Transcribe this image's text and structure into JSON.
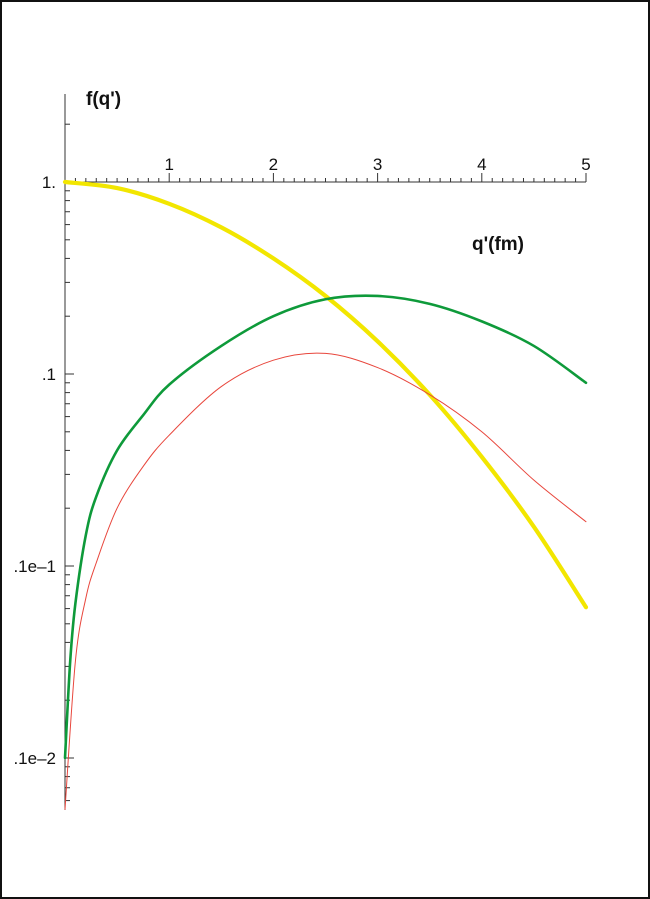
{
  "chart_data": {
    "type": "line",
    "ylabel": "f(q')",
    "xlabel": "q'(fm)",
    "xlim": [
      0,
      5
    ],
    "ylim": [
      0.0006,
      2.5
    ],
    "yscale": "log",
    "x_ticks": [
      {
        "value": 1,
        "label": "1"
      },
      {
        "value": 2,
        "label": "2"
      },
      {
        "value": 3,
        "label": "3"
      },
      {
        "value": 4,
        "label": "4"
      },
      {
        "value": 5,
        "label": "5"
      }
    ],
    "y_ticks": [
      {
        "value": 1,
        "label": "1."
      },
      {
        "value": 0.1,
        "label": ".1"
      },
      {
        "value": 0.01,
        "label": ".1e–1"
      },
      {
        "value": 0.001,
        "label": ".1e–2"
      }
    ],
    "grid": false,
    "series": [
      {
        "color": "#f2e600",
        "x": [
          0,
          0.5,
          1,
          1.5,
          2,
          2.5,
          3,
          3.5,
          4,
          4.5,
          5
        ],
        "y": [
          1.0,
          0.93,
          0.77,
          0.58,
          0.4,
          0.255,
          0.148,
          0.078,
          0.037,
          0.016,
          0.0061
        ]
      },
      {
        "color": "#0e9a3a",
        "x": [
          0,
          0.05,
          0.1,
          0.2,
          0.3,
          0.5,
          0.75,
          1,
          1.5,
          2,
          2.5,
          3,
          3.5,
          4,
          4.5,
          5
        ],
        "y": [
          0.001,
          0.0032,
          0.0064,
          0.0145,
          0.023,
          0.04,
          0.061,
          0.088,
          0.14,
          0.2,
          0.245,
          0.255,
          0.232,
          0.188,
          0.14,
          0.09
        ]
      },
      {
        "color": "#e8463c",
        "x": [
          0,
          0.1,
          0.2,
          0.3,
          0.5,
          0.75,
          1,
          1.5,
          2,
          2.5,
          3,
          3.5,
          4,
          4.5,
          5
        ],
        "y": [
          0.00054,
          0.0032,
          0.0068,
          0.0104,
          0.02,
          0.033,
          0.048,
          0.086,
          0.118,
          0.128,
          0.108,
          0.078,
          0.05,
          0.028,
          0.017
        ]
      }
    ]
  }
}
